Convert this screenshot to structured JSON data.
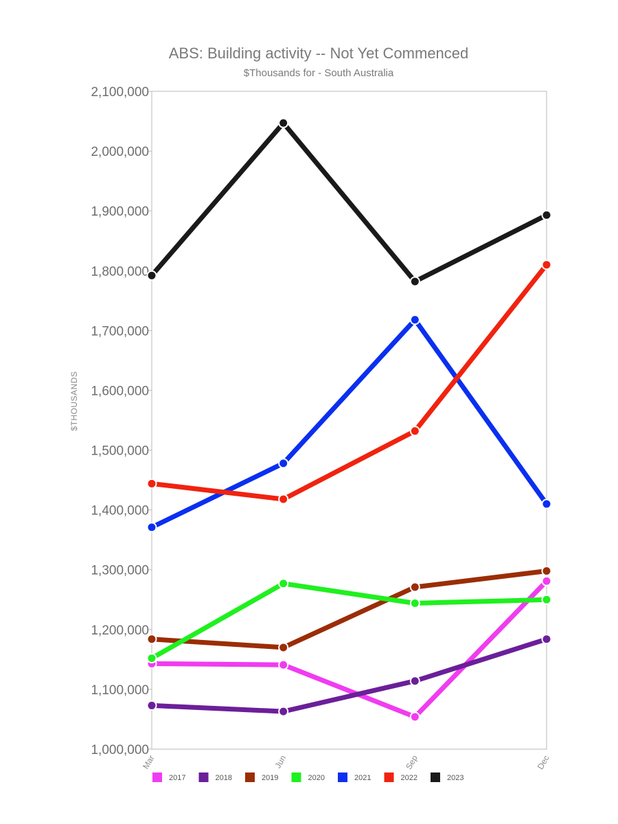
{
  "chart_data": {
    "type": "line",
    "title": "ABS: Building activity -- Not Yet Commenced",
    "subtitle": "$Thousands for - South Australia",
    "xlabel": "",
    "ylabel": "$THOUSANDS",
    "categories": [
      "Mar",
      "Jun",
      "Sep",
      "Dec"
    ],
    "ylim": [
      1000000,
      2100000
    ],
    "yticks": [
      1000000,
      1100000,
      1200000,
      1300000,
      1400000,
      1500000,
      1600000,
      1700000,
      1800000,
      1900000,
      2000000,
      2100000
    ],
    "ytick_labels": [
      "1,000,000",
      "1,100,000",
      "1,200,000",
      "1,300,000",
      "1,400,000",
      "1,500,000",
      "1,600,000",
      "1,700,000",
      "1,800,000",
      "1,900,000",
      "2,000,000",
      "2,100,000"
    ],
    "grid": false,
    "legend_position": "bottom",
    "series": [
      {
        "name": "2017",
        "color": "#f03cf0",
        "values": [
          1143000,
          1141000,
          1054000,
          1281000
        ]
      },
      {
        "name": "2018",
        "color": "#6b1f9a",
        "values": [
          1073000,
          1063000,
          1114000,
          1184000
        ]
      },
      {
        "name": "2019",
        "color": "#9b2d05",
        "values": [
          1184000,
          1170000,
          1271000,
          1298000
        ]
      },
      {
        "name": "2020",
        "color": "#1ff01f",
        "values": [
          1152000,
          1277000,
          1244000,
          1250000
        ]
      },
      {
        "name": "2021",
        "color": "#0a2ff0",
        "values": [
          1371000,
          1478000,
          1718000,
          1410000
        ]
      },
      {
        "name": "2022",
        "color": "#f0230f",
        "values": [
          1444000,
          1418000,
          1532000,
          1810000
        ]
      },
      {
        "name": "2023",
        "color": "#1a1a1a",
        "values": [
          1792000,
          2047000,
          1782000,
          1893000
        ]
      }
    ]
  }
}
